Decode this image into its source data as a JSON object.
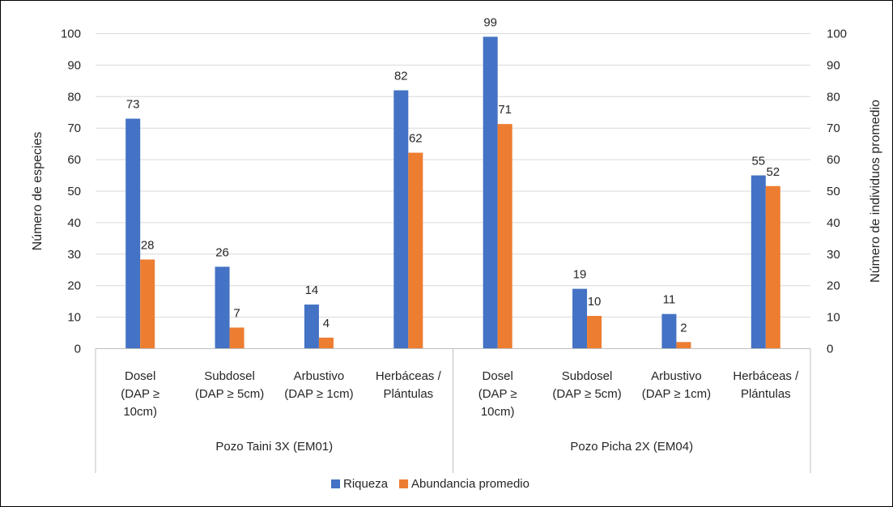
{
  "chart_data": {
    "type": "bar",
    "title": "",
    "ylabel": "Número de especies",
    "y2label": "Número de individuos promedio",
    "ylim": [
      0,
      100
    ],
    "y2lim": [
      0,
      100
    ],
    "y_ticks": [
      "0",
      "10",
      "20",
      "30",
      "40",
      "50",
      "60",
      "70",
      "80",
      "90",
      "100"
    ],
    "y2_ticks": [
      "0",
      "10",
      "20",
      "30",
      "40",
      "50",
      "60",
      "70",
      "80",
      "90",
      "100"
    ],
    "grid": true,
    "legend_position": "bottom",
    "groups": [
      {
        "name": "Pozo Taini 3X (EM01)",
        "categories": [
          [
            "Dosel",
            "(DAP ≥",
            "10cm)"
          ],
          [
            "Subdosel",
            "(DAP ≥ 5cm)"
          ],
          [
            "Arbustivo",
            "(DAP ≥ 1cm)"
          ],
          [
            "Herbáceas /",
            "Plántulas"
          ]
        ]
      },
      {
        "name": "Pozo Picha 2X (EM04)",
        "categories": [
          [
            "Dosel",
            "(DAP ≥",
            "10cm)"
          ],
          [
            "Subdosel",
            "(DAP ≥ 5cm)"
          ],
          [
            "Arbustivo",
            "(DAP ≥ 1cm)"
          ],
          [
            "Herbáceas /",
            "Plántulas"
          ]
        ]
      }
    ],
    "series": [
      {
        "name": "Riqueza",
        "color": "#4472C4",
        "axis": "left",
        "values": [
          73,
          26,
          14,
          82,
          99,
          19,
          11,
          55
        ],
        "labels": [
          "73",
          "26",
          "14",
          "82",
          "99",
          "19",
          "11",
          "55"
        ]
      },
      {
        "name": "Abundancia promedio",
        "color": "#ED7D31",
        "axis": "right",
        "values": [
          28.3,
          6.7,
          3.5,
          62.2,
          71.3,
          10.4,
          2.1,
          51.6
        ],
        "labels": [
          "28",
          "7",
          "4",
          "62",
          "71",
          "10",
          "2",
          "52"
        ]
      }
    ]
  }
}
